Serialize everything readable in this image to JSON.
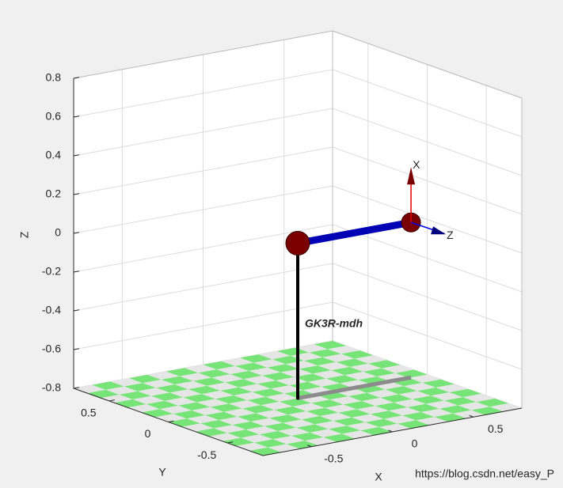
{
  "chart_data": {
    "type": "robot3d",
    "xlabel": "X",
    "ylabel": "Y",
    "zlabel": "Z",
    "xlim": [
      -0.8,
      0.8
    ],
    "ylim": [
      -0.8,
      0.8
    ],
    "zlim": [
      -0.8,
      0.8
    ],
    "xticks": [
      -0.5,
      0,
      0.5
    ],
    "yticks": [
      -0.5,
      0,
      0.5
    ],
    "zticks": [
      -0.8,
      -0.6,
      -0.4,
      -0.2,
      0,
      0.2,
      0.4,
      0.6,
      0.8
    ],
    "grid": true,
    "robot": {
      "name": "GK3R-mdh",
      "x": [
        0,
        0,
        0.7
      ],
      "y": [
        0,
        0,
        0
      ],
      "z": [
        -0.8,
        0,
        0
      ],
      "link_colors": [
        "#000000",
        "#0000b4"
      ],
      "joint_color": "#7a0000",
      "floor_colors": [
        "#77e477",
        "#e6e6e6"
      ]
    },
    "frame_labels": [
      "X",
      "Z"
    ],
    "watermark": "https://blog.csdn.net/easy_P"
  }
}
